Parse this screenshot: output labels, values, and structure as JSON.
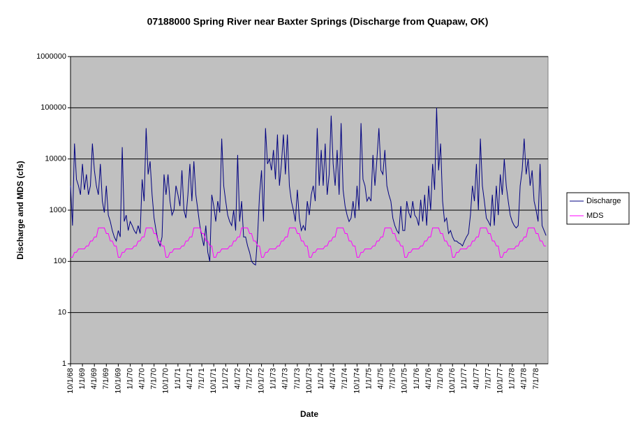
{
  "chart_data": {
    "type": "line",
    "title": "07188000 Spring River near Baxter Springs (Discharge from Quapaw, OK)",
    "x_label": "Date",
    "y_label": "Discharge and MDS (cfs)",
    "log_scale": true,
    "grid": true,
    "legend": "right",
    "background": "#c0c0c0",
    "ylim": [
      1,
      1000000
    ],
    "yticks": [
      1,
      10,
      100,
      1000,
      10000,
      100000,
      1000000
    ],
    "categories": [
      "10/1/68",
      null,
      null,
      null,
      null,
      null,
      "1/1/69",
      null,
      null,
      null,
      null,
      null,
      "4/1/69",
      null,
      null,
      null,
      null,
      null,
      "7/1/69",
      null,
      null,
      null,
      null,
      null,
      "10/1/69",
      null,
      null,
      null,
      null,
      null,
      "1/1/70",
      null,
      null,
      null,
      null,
      null,
      "4/1/70",
      null,
      null,
      null,
      null,
      null,
      "7/1/70",
      null,
      null,
      null,
      null,
      null,
      "10/1/70",
      null,
      null,
      null,
      null,
      null,
      "1/1/71",
      null,
      null,
      null,
      null,
      null,
      "4/1/71",
      null,
      null,
      null,
      null,
      null,
      "7/1/71",
      null,
      null,
      null,
      null,
      null,
      "10/1/71",
      null,
      null,
      null,
      null,
      null,
      "1/1/72",
      null,
      null,
      null,
      null,
      null,
      "4/1/72",
      null,
      null,
      null,
      null,
      null,
      "7/1/72",
      null,
      null,
      null,
      null,
      null,
      "10/1/72",
      null,
      null,
      null,
      null,
      null,
      "1/1/73",
      null,
      null,
      null,
      null,
      null,
      "4/1/73",
      null,
      null,
      null,
      null,
      null,
      "7/1/73",
      null,
      null,
      null,
      null,
      null,
      "10/1/73",
      null,
      null,
      null,
      null,
      null,
      "1/1/74",
      null,
      null,
      null,
      null,
      null,
      "4/1/74",
      null,
      null,
      null,
      null,
      null,
      "7/1/74",
      null,
      null,
      null,
      null,
      null,
      "10/1/74",
      null,
      null,
      null,
      null,
      null,
      "1/1/75",
      null,
      null,
      null,
      null,
      null,
      "4/1/75",
      null,
      null,
      null,
      null,
      null,
      "7/1/75",
      null,
      null,
      null,
      null,
      null,
      "10/1/75",
      null,
      null,
      null,
      null,
      null,
      "1/1/76",
      null,
      null,
      null,
      null,
      null,
      "4/1/76",
      null,
      null,
      null,
      null,
      null,
      "7/1/76",
      null,
      null,
      null,
      null,
      null,
      "10/1/76",
      null,
      null,
      null,
      null,
      null,
      "1/1/77",
      null,
      null,
      null,
      null,
      null,
      "4/1/77",
      null,
      null,
      null,
      null,
      null,
      "7/1/77",
      null,
      null,
      null,
      null,
      null,
      "10/1/77",
      null,
      null,
      null,
      null,
      null,
      "1/1/78",
      null,
      null,
      null,
      null,
      null,
      "4/1/78",
      null,
      null,
      null,
      null,
      null,
      "7/1/78",
      null,
      null,
      null,
      null,
      null
    ],
    "series": [
      {
        "name": "Discharge",
        "color": "#000080",
        "values": [
          3000,
          500,
          20000,
          4000,
          3000,
          2000,
          8000,
          2500,
          5000,
          2000,
          3000,
          20000,
          6000,
          3000,
          2000,
          8000,
          1500,
          900,
          3000,
          800,
          600,
          400,
          300,
          250,
          400,
          300,
          17000,
          600,
          800,
          400,
          600,
          500,
          400,
          350,
          500,
          350,
          4000,
          1500,
          40000,
          5000,
          9000,
          2000,
          700,
          400,
          250,
          200,
          300,
          5000,
          2000,
          5000,
          1500,
          800,
          1000,
          3000,
          2000,
          1200,
          6000,
          1000,
          700,
          2000,
          8000,
          1500,
          9000,
          2000,
          1000,
          500,
          300,
          200,
          500,
          150,
          100,
          2000,
          1200,
          600,
          1500,
          900,
          25000,
          3000,
          1500,
          800,
          600,
          500,
          1000,
          400,
          12000,
          600,
          1500,
          300,
          300,
          200,
          150,
          100,
          90,
          85,
          300,
          2000,
          6000,
          600,
          40000,
          8000,
          10000,
          6000,
          15000,
          4000,
          30000,
          3000,
          8000,
          30000,
          5000,
          30000,
          3000,
          1500,
          1000,
          600,
          2500,
          700,
          400,
          500,
          400,
          1500,
          800,
          2000,
          3000,
          1500,
          40000,
          3000,
          15000,
          3000,
          20000,
          2000,
          5000,
          70000,
          8000,
          3000,
          15000,
          2000,
          50000,
          2500,
          1200,
          800,
          600,
          700,
          1500,
          700,
          3000,
          1000,
          50000,
          4000,
          3000,
          1500,
          1800,
          1500,
          12000,
          3000,
          10000,
          40000,
          6000,
          5000,
          15000,
          3000,
          2000,
          1500,
          700,
          500,
          400,
          350,
          1200,
          400,
          400,
          1500,
          900,
          700,
          1500,
          800,
          700,
          500,
          1600,
          600,
          2000,
          500,
          3000,
          1000,
          8000,
          2500,
          100000,
          6000,
          20000,
          1500,
          600,
          700,
          350,
          400,
          300,
          250,
          250,
          230,
          220,
          200,
          250,
          300,
          350,
          800,
          3000,
          1500,
          8000,
          1000,
          25000,
          3000,
          1500,
          700,
          600,
          500,
          2000,
          500,
          3000,
          800,
          5000,
          2000,
          10000,
          3000,
          1500,
          800,
          600,
          500,
          450,
          500,
          3000,
          6000,
          25000,
          5000,
          10000,
          3000,
          6000,
          1500,
          1000,
          600,
          8000,
          500,
          400,
          320
        ]
      },
      {
        "name": "MDS",
        "color": "#ff00ff",
        "values": [
          120,
          120,
          150,
          150,
          175,
          175,
          175,
          175,
          200,
          200,
          250,
          250,
          300,
          300,
          450,
          450,
          450,
          450,
          350,
          350,
          250,
          250,
          200,
          200,
          120,
          120,
          150,
          150,
          175,
          175,
          175,
          175,
          200,
          200,
          250,
          250,
          300,
          300,
          450,
          450,
          450,
          450,
          350,
          350,
          250,
          250,
          200,
          200,
          120,
          120,
          150,
          150,
          175,
          175,
          175,
          175,
          200,
          200,
          250,
          250,
          300,
          300,
          450,
          450,
          450,
          450,
          350,
          350,
          250,
          250,
          200,
          200,
          120,
          120,
          150,
          150,
          175,
          175,
          175,
          175,
          200,
          200,
          250,
          250,
          300,
          300,
          450,
          450,
          450,
          450,
          350,
          350,
          250,
          250,
          200,
          200,
          120,
          120,
          150,
          150,
          175,
          175,
          175,
          175,
          200,
          200,
          250,
          250,
          300,
          300,
          450,
          450,
          450,
          450,
          350,
          350,
          250,
          250,
          200,
          200,
          120,
          120,
          150,
          150,
          175,
          175,
          175,
          175,
          200,
          200,
          250,
          250,
          300,
          300,
          450,
          450,
          450,
          450,
          350,
          350,
          250,
          250,
          200,
          200,
          120,
          120,
          150,
          150,
          175,
          175,
          175,
          175,
          200,
          200,
          250,
          250,
          300,
          300,
          450,
          450,
          450,
          450,
          350,
          350,
          250,
          250,
          200,
          200,
          120,
          120,
          150,
          150,
          175,
          175,
          175,
          175,
          200,
          200,
          250,
          250,
          300,
          300,
          450,
          450,
          450,
          450,
          350,
          350,
          250,
          250,
          200,
          200,
          120,
          120,
          150,
          150,
          175,
          175,
          175,
          175,
          200,
          200,
          250,
          250,
          300,
          300,
          450,
          450,
          450,
          450,
          350,
          350,
          250,
          250,
          200,
          200,
          120,
          120,
          150,
          150,
          175,
          175,
          175,
          175,
          200,
          200,
          250,
          250,
          300,
          300,
          450,
          450,
          450,
          450,
          350,
          350,
          250,
          250,
          200,
          200
        ]
      }
    ]
  }
}
